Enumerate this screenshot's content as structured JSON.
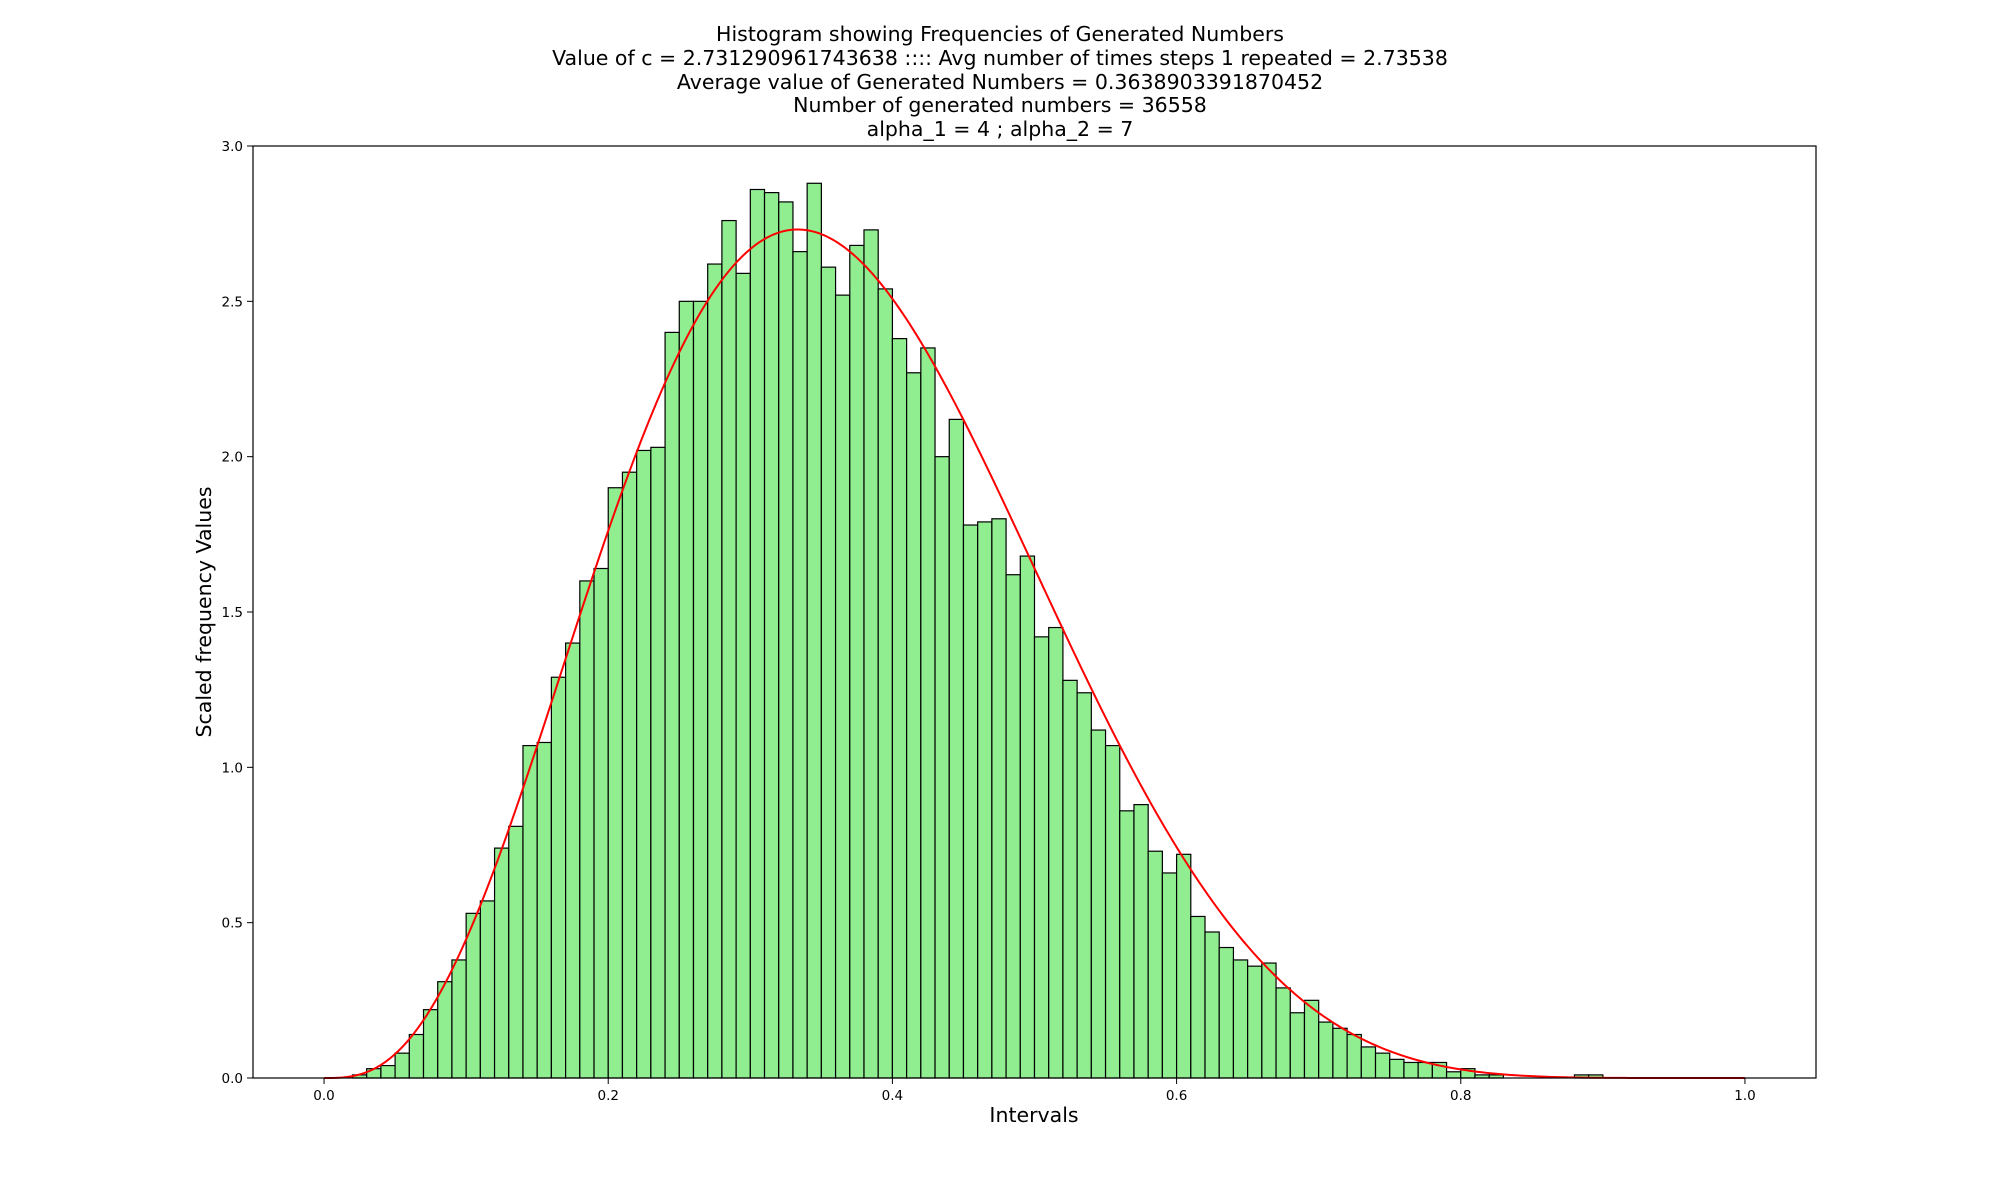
{
  "chart_data": {
    "type": "bar",
    "title_lines": [
      "Histogram showing Frequencies of Generated Numbers",
      "Value of c = 2.731290961743638 :::: Avg number of times steps 1 repeated = 2.73538",
      "Average value of Generated Numbers = 0.3638903391870452",
      "Number of generated numbers = 36558",
      "alpha_1 = 4 ; alpha_2 = 7"
    ],
    "xlabel": "Intervals",
    "ylabel": "Scaled frequency Values",
    "xlim": [
      -0.05,
      1.05
    ],
    "ylim": [
      0.0,
      3.0
    ],
    "x_ticks": [
      "0.0",
      "0.2",
      "0.4",
      "0.6",
      "0.8",
      "1.0"
    ],
    "y_ticks": [
      "0.0",
      "0.5",
      "1.0",
      "1.5",
      "2.0",
      "2.5",
      "3.0"
    ],
    "grid": false,
    "bin_width": 0.01,
    "bins_start": 0.0,
    "bar_color": "#90ee90",
    "bar_edge_color": "#000000",
    "curve_color": "#ff0000",
    "values": [
      0.0,
      0.0,
      0.01,
      0.03,
      0.04,
      0.08,
      0.14,
      0.22,
      0.31,
      0.38,
      0.53,
      0.57,
      0.74,
      0.81,
      1.07,
      1.08,
      1.29,
      1.4,
      1.6,
      1.64,
      1.9,
      1.95,
      2.02,
      2.03,
      2.4,
      2.5,
      2.5,
      2.62,
      2.76,
      2.59,
      2.86,
      2.85,
      2.82,
      2.66,
      2.88,
      2.61,
      2.52,
      2.68,
      2.73,
      2.54,
      2.38,
      2.27,
      2.35,
      2.0,
      2.12,
      1.78,
      1.79,
      1.8,
      1.62,
      1.68,
      1.42,
      1.45,
      1.28,
      1.24,
      1.12,
      1.07,
      0.86,
      0.88,
      0.73,
      0.66,
      0.72,
      0.52,
      0.47,
      0.42,
      0.38,
      0.36,
      0.37,
      0.29,
      0.21,
      0.25,
      0.18,
      0.16,
      0.14,
      0.1,
      0.08,
      0.06,
      0.05,
      0.05,
      0.05,
      0.02,
      0.03,
      0.01,
      0.01,
      0.0,
      0.0,
      0.0,
      0.0,
      0.0,
      0.01,
      0.01,
      0.0,
      0.0,
      0.0,
      0.0,
      0.0,
      0.0,
      0.0,
      0.0,
      0.0,
      0.0
    ],
    "curve": {
      "formula": "f(x) = 840 x^3 (1-x)^6",
      "x_range": [
        0.0,
        1.0
      ]
    }
  }
}
